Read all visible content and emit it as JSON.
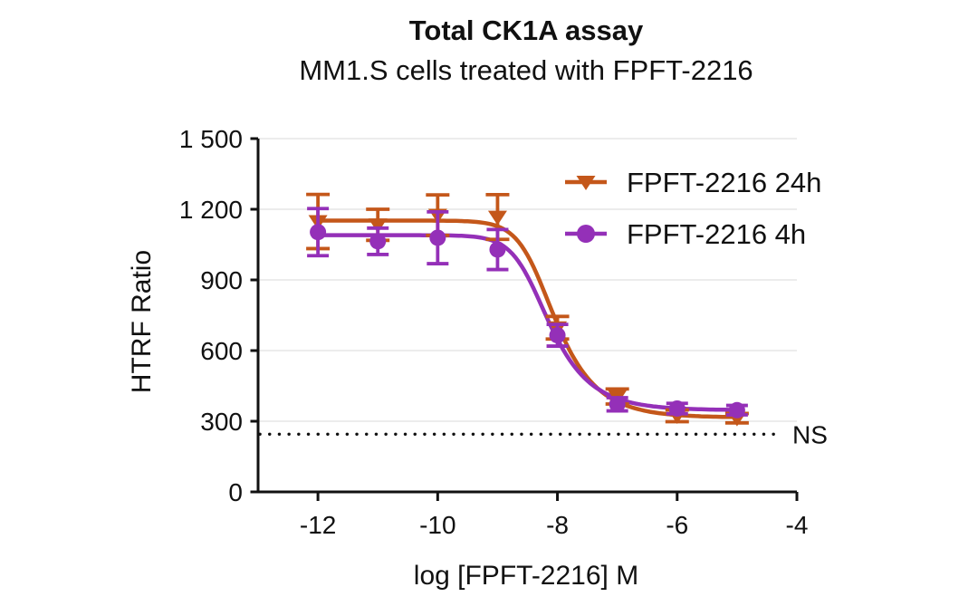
{
  "title": "Total CK1A assay",
  "subtitle": "MM1.S cells treated with FPFT-2216",
  "colors": {
    "series_24h": "#C4571A",
    "series_4h": "#9430B8",
    "grid": "#ECECEC",
    "axis": "#111111",
    "text": "#111111",
    "annotation": "#111111",
    "background": "#FFFFFF"
  },
  "chart_data": {
    "type": "line",
    "title": "Total CK1A assay",
    "subtitle": "MM1.S cells treated with FPFT-2216",
    "xlabel": "log [FPFT-2216] M",
    "ylabel": "HTRF Ratio",
    "xlim": [
      -13,
      -4
    ],
    "ylim": [
      0,
      1500
    ],
    "x_ticks": [
      -12,
      -10,
      -8,
      -6,
      -4
    ],
    "x_tick_labels": [
      "-12",
      "-10",
      "-8",
      "-6",
      "-4"
    ],
    "y_ticks": [
      0,
      300,
      600,
      900,
      1200,
      1500
    ],
    "y_tick_labels": [
      "0",
      "300",
      "600",
      "900",
      "1 200",
      "1 500"
    ],
    "grid": true,
    "legend_position": "top-right-inside",
    "x": [
      -12,
      -11,
      -10,
      -9,
      -8,
      -7,
      -6,
      -5
    ],
    "series": [
      {
        "name": "FPFT-2216 24h",
        "color": "#C4571A",
        "marker": "triangle-down",
        "values": [
          1148,
          1134,
          1175,
          1167,
          697,
          405,
          323,
          313
        ],
        "errors": [
          115,
          66,
          86,
          95,
          48,
          32,
          25,
          20
        ],
        "fit": {
          "top": 1152,
          "bottom": 316,
          "logec50": -8.35,
          "hill": 1.8,
          "asymmetry": 0.45
        }
      },
      {
        "name": "FPFT-2216 4h",
        "color": "#9430B8",
        "marker": "circle",
        "values": [
          1103,
          1064,
          1079,
          1029,
          665,
          372,
          354,
          347
        ],
        "errors": [
          100,
          56,
          110,
          85,
          46,
          28,
          22,
          20
        ],
        "fit": {
          "top": 1090,
          "bottom": 347,
          "logec50": -8.45,
          "hill": 1.8,
          "asymmetry": 0.45
        }
      }
    ],
    "annotation": {
      "label": "NS",
      "y": 245,
      "line_style": "dotted"
    }
  }
}
